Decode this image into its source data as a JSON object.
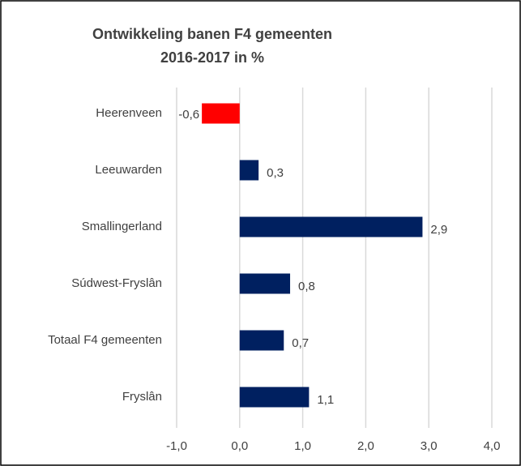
{
  "chart_data": {
    "type": "barh",
    "title": [
      "Ontwikkeling banen F4 gemeenten",
      "2016-2017 in %"
    ],
    "categories": [
      "Heerenveen",
      "Leeuwarden",
      "Smallingerland",
      "Súdwest-Fryslân",
      "Totaal F4 gemeenten",
      "Fryslân"
    ],
    "values": [
      -0.6,
      0.3,
      2.9,
      0.8,
      0.7,
      1.1
    ],
    "value_labels": [
      "-0,6",
      "0,3",
      "2,9",
      "0,8",
      "0,7",
      "1,1"
    ],
    "colors": [
      "#ff0000",
      "#002060",
      "#002060",
      "#002060",
      "#002060",
      "#002060"
    ],
    "xlim": [
      -1,
      4
    ],
    "xticks": [
      {
        "value": -1,
        "label": "-1,0"
      },
      {
        "value": 0,
        "label": "0,0"
      },
      {
        "value": 1,
        "label": "1,0"
      },
      {
        "value": 2,
        "label": "2,0"
      },
      {
        "value": 3,
        "label": "3,0"
      },
      {
        "value": 4,
        "label": "4,0"
      }
    ],
    "grid": true
  }
}
